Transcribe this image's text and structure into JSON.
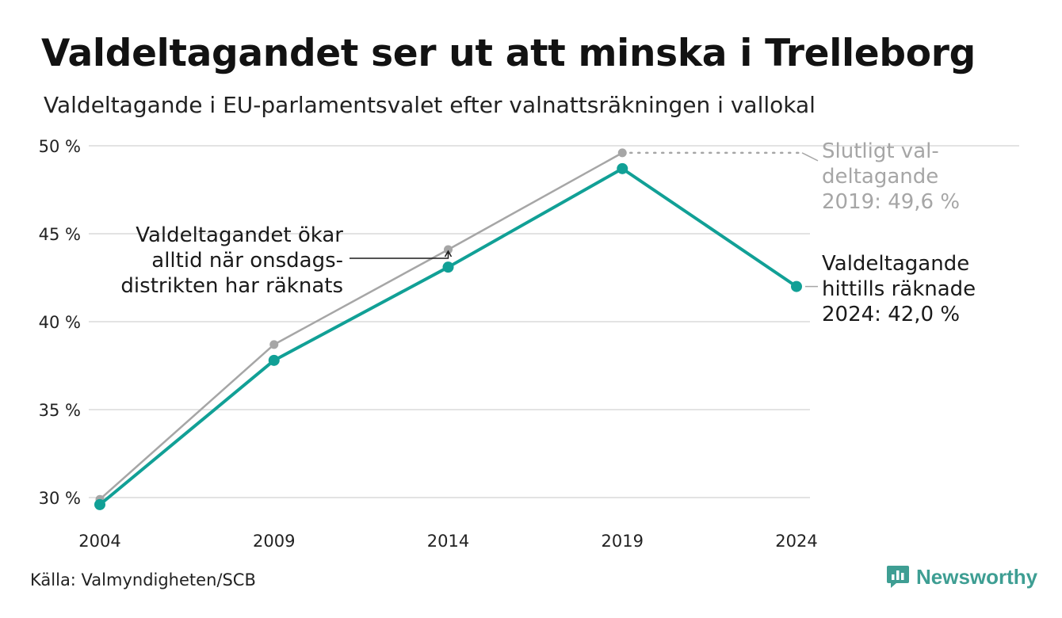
{
  "header": {
    "title": "Valdeltagandet ser ut att minska i Trelleborg",
    "subtitle": "Valdeltagande i EU-parlamentsvalet efter valnattsräkningen i vallokal"
  },
  "footer": {
    "source": "Källa: Valmyndigheten/SCB",
    "brand": "Newsworthy"
  },
  "colors": {
    "final_series": "#a6a6a6",
    "preliminary_series": "#11a096",
    "grid": "#e3e3e3",
    "brand": "#3e9e93"
  },
  "icons": {
    "brand_logo": "bar-chart-speech-bubble-icon"
  },
  "chart_data": {
    "type": "line",
    "title": "Valdeltagandet ser ut att minska i Trelleborg",
    "subtitle": "Valdeltagande i EU-parlamentsvalet efter valnattsräkningen i vallokal",
    "x": [
      "2004",
      "2009",
      "2014",
      "2019",
      "2024"
    ],
    "y_ticks": [
      30,
      35,
      40,
      45,
      50
    ],
    "y_tick_labels": [
      "30 %",
      "35 %",
      "40 %",
      "45 %",
      "50 %"
    ],
    "ylim": [
      30,
      50
    ],
    "grid": true,
    "series": [
      {
        "key": "final",
        "values": [
          29.9,
          38.7,
          44.1,
          49.6,
          null
        ]
      },
      {
        "key": "preliminary",
        "values": [
          29.6,
          37.8,
          43.1,
          48.7,
          42.0
        ]
      }
    ],
    "annotations": {
      "final_2019": [
        "Slutligt val-",
        "deltagande",
        "2019: 49,6 %"
      ],
      "current_2024": [
        "Valdeltagande",
        "hittills räknade",
        "2024: 42,0 %"
      ],
      "note_2014": [
        "Valdeltagandet ökar",
        "alltid när onsdags-",
        "distrikten har räknats"
      ]
    }
  }
}
